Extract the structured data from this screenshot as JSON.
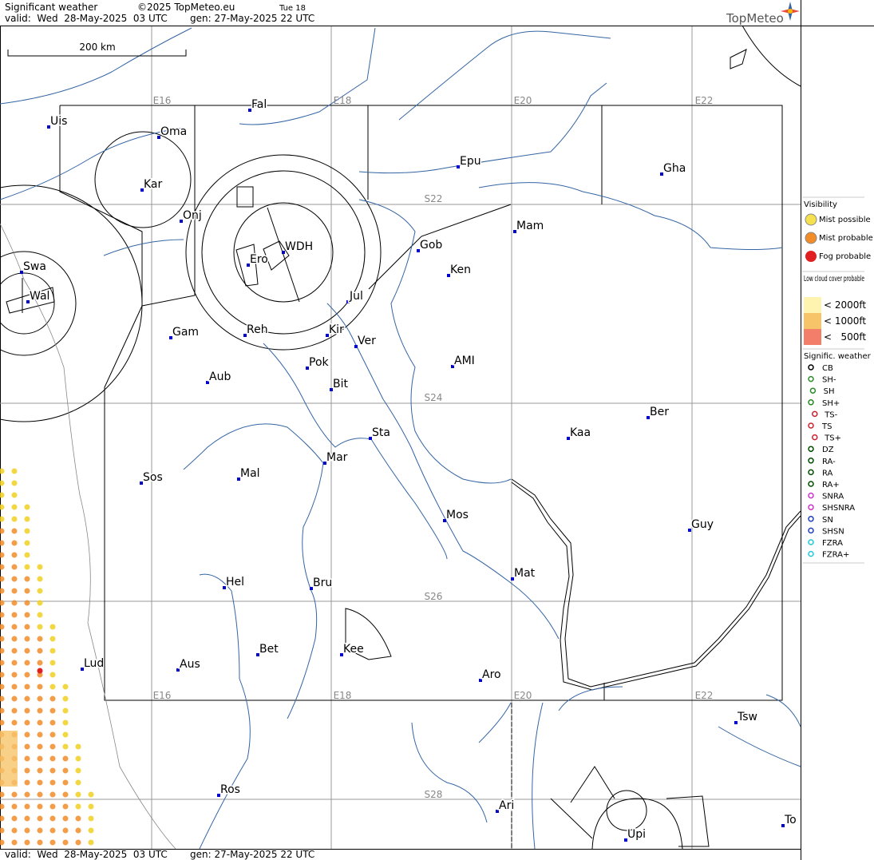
{
  "header": {
    "title": "Significant weather",
    "copyright": "©2025 TopMeteo.eu",
    "run": "Tue 18",
    "valid": "valid:  Wed  28-May-2025  03 UTC",
    "gen": "gen: 27-May-2025 22 UTC",
    "logo": "TopMeteo"
  },
  "map": {
    "scale": "200 km",
    "grid_labels_top": [
      "E16",
      "E18",
      "E20",
      "E22"
    ],
    "grid_labels_bottom": [
      "E16",
      "E18",
      "E20",
      "E22"
    ],
    "lat_labels": [
      "S22",
      "S24",
      "S26",
      "S28"
    ],
    "places": [
      "Uis",
      "Fal",
      "Oma",
      "Kar",
      "Onj",
      "Swa",
      "Wal",
      "WDH",
      "Ero",
      "Jul",
      "Gob",
      "Ken",
      "Mam",
      "Epu",
      "Gha",
      "Gam",
      "Reh",
      "Kir",
      "Ver",
      "Pok",
      "AMI",
      "Aub",
      "Bit",
      "Sta",
      "Kaa",
      "Ber",
      "Sos",
      "Mal",
      "Mar",
      "Mos",
      "Guy",
      "Hel",
      "Bru",
      "Mat",
      "Bet",
      "Kee",
      "Lud",
      "Aus",
      "Aro",
      "Tsw",
      "Ros",
      "Ari",
      "Upi",
      "To"
    ]
  },
  "legend": {
    "visibility": {
      "title": "Visibility",
      "items": [
        "Mist possible",
        "Mist probable",
        "Fog probable"
      ]
    },
    "low_cloud": {
      "title": "Low cloud cover probable",
      "items": [
        "< 2000ft",
        "< 1000ft",
        "<   500ft"
      ]
    },
    "weather": {
      "title": "Signific. weather",
      "items": [
        "CB",
        "SH-",
        "SH",
        "SH+",
        "TS-",
        "TS",
        "TS+",
        "DZ",
        "RA-",
        "RA",
        "RA+",
        "SNRA",
        "SHSNRA",
        "SN",
        "SHSN",
        "FZRA",
        "FZRA+"
      ]
    }
  },
  "footer": {
    "valid": "valid:  Wed  28-May-2025  03 UTC",
    "gen": "gen: 27-May-2025 22 UTC"
  }
}
